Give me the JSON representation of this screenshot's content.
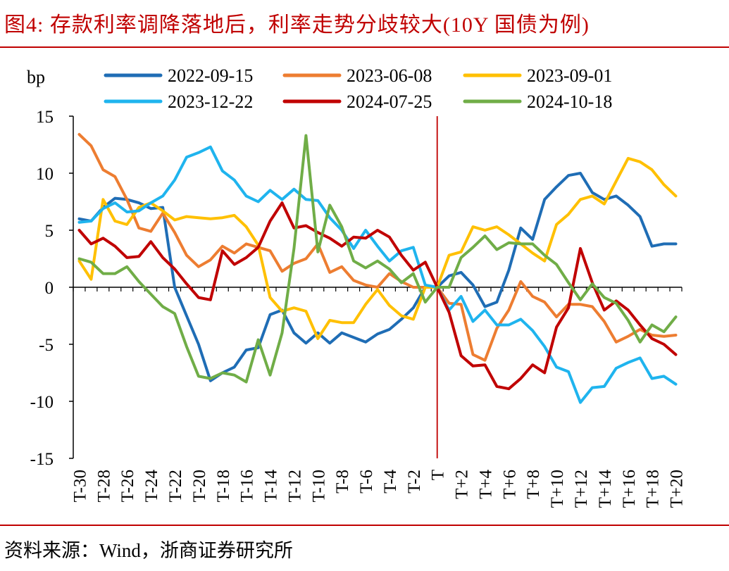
{
  "header": {
    "title": "图4:   存款利率调降落地后，利率走势分歧较大(10Y 国债为例)"
  },
  "footer": {
    "source": "资料来源：Wind，浙商证券研究所"
  },
  "chart_data": {
    "type": "line",
    "title": "",
    "ylabel": "bp",
    "ylim": [
      -15,
      15
    ],
    "yticks": [
      15,
      10,
      5,
      0,
      -5,
      -10,
      -15
    ],
    "event_marker": "T",
    "tick_labels": [
      "T-30",
      "T-28",
      "T-26",
      "T-24",
      "T-22",
      "T-20",
      "T-18",
      "T-16",
      "T-14",
      "T-12",
      "T-10",
      "T-8",
      "T-6",
      "T-4",
      "T-2",
      "T",
      "T+2",
      "T+4",
      "T+6",
      "T+8",
      "T+10",
      "T+12",
      "T+14",
      "T+16",
      "T+18",
      "T+20"
    ],
    "categories": [
      "T-30",
      "T-29",
      "T-28",
      "T-27",
      "T-26",
      "T-25",
      "T-24",
      "T-23",
      "T-22",
      "T-21",
      "T-20",
      "T-19",
      "T-18",
      "T-17",
      "T-16",
      "T-15",
      "T-14",
      "T-13",
      "T-12",
      "T-11",
      "T-10",
      "T-9",
      "T-8",
      "T-7",
      "T-6",
      "T-5",
      "T-4",
      "T-3",
      "T-2",
      "T-1",
      "T",
      "T+1",
      "T+2",
      "T+3",
      "T+4",
      "T+5",
      "T+6",
      "T+7",
      "T+8",
      "T+9",
      "T+10",
      "T+11",
      "T+12",
      "T+13",
      "T+14",
      "T+15",
      "T+16",
      "T+17",
      "T+18",
      "T+19",
      "T+20"
    ],
    "legend_position": "top",
    "series": [
      {
        "name": "2022-09-15",
        "color": "#1f6db5",
        "values": [
          6,
          5.8,
          7,
          7.8,
          7.7,
          7.4,
          6.9,
          7,
          0,
          -2.5,
          -5,
          -8.2,
          -7.5,
          -7,
          -5.5,
          -5.3,
          -2.4,
          -2,
          -4,
          -4.9,
          -4,
          -4.9,
          -4,
          -4.4,
          -4.8,
          -4.1,
          -3.7,
          -2.8,
          -1.8,
          0,
          0,
          1,
          1.3,
          0.2,
          -1.7,
          -1.3,
          1.5,
          5.2,
          4.2,
          7.7,
          8.8,
          9.8,
          10,
          8.3,
          7.7,
          8,
          7.2,
          6.2,
          3.6,
          3.8,
          3.8
        ]
      },
      {
        "name": "2023-06-08",
        "color": "#ed7d31",
        "values": [
          13.4,
          12.4,
          10.3,
          9.7,
          7.7,
          5.2,
          4.9,
          6.5,
          4.8,
          2.8,
          1.8,
          2.4,
          3.6,
          3,
          3.8,
          3.5,
          3.2,
          1.4,
          2.1,
          2.5,
          3.8,
          1.3,
          1.8,
          0.6,
          0.2,
          0,
          1.2,
          0.5,
          0,
          0,
          0,
          -1.4,
          -1.5,
          -5.9,
          -6.4,
          -3.6,
          -2,
          0.5,
          -0.8,
          -1.3,
          -2.6,
          -1.5,
          -1.5,
          -1.7,
          -3,
          -4.8,
          -4.3,
          -3.7,
          -4.2,
          -4.3,
          -4.2
        ]
      },
      {
        "name": "2023-09-01",
        "color": "#ffc000",
        "values": [
          2.3,
          0.7,
          7.7,
          5.8,
          5.5,
          7,
          7.4,
          6.7,
          5.9,
          6.2,
          6.1,
          6,
          6.1,
          6.3,
          5.3,
          3.7,
          -0.9,
          -2.1,
          -1.8,
          -2.1,
          -4.5,
          -2.9,
          -3.1,
          -3.1,
          -1.5,
          -0.2,
          -1.6,
          -2.5,
          -2.8,
          0,
          0,
          2.8,
          3.1,
          5.3,
          5,
          5.3,
          4.6,
          3.8,
          3,
          2.3,
          5.5,
          6.4,
          7.7,
          8,
          7.3,
          9.3,
          11.3,
          11,
          10.3,
          9,
          8
        ]
      },
      {
        "name": "2023-12-22",
        "color": "#1fb4ee",
        "values": [
          5.7,
          5.8,
          6.9,
          7.4,
          6.6,
          6.7,
          7.4,
          8,
          9.4,
          11.4,
          11.8,
          12.3,
          10.2,
          9.4,
          8,
          7.5,
          8.5,
          7.7,
          8.6,
          7.7,
          7.6,
          6.1,
          5,
          3.4,
          5,
          3.6,
          2.3,
          3.2,
          3.5,
          0.2,
          0,
          -2,
          -0.8,
          -3,
          -2,
          -3.3,
          -3.3,
          -2.8,
          -3.8,
          -5.2,
          -7,
          -7.4,
          -10.1,
          -8.8,
          -8.7,
          -7.1,
          -6.6,
          -6.2,
          -8,
          -7.8,
          -8.5
        ]
      },
      {
        "name": "2024-07-25",
        "color": "#c00000",
        "values": [
          5,
          3.8,
          4.3,
          3.6,
          2.6,
          2.7,
          4,
          2.6,
          1.6,
          0.3,
          -0.9,
          -1.1,
          3.2,
          2,
          2.6,
          3.5,
          5.8,
          7.4,
          5.2,
          5.4,
          4.8,
          4.3,
          3.6,
          4.4,
          4.3,
          5,
          4.4,
          2.8,
          1.5,
          2.2,
          0,
          -2.2,
          -6,
          -6.9,
          -6.8,
          -8.7,
          -8.9,
          -8,
          -6.8,
          -7.5,
          -3.5,
          -1.8,
          3.4,
          0.4,
          -2,
          -1.2,
          -2,
          -3.3,
          -4.5,
          -5,
          -5.9
        ]
      },
      {
        "name": "2024-10-18",
        "color": "#70ad47",
        "values": [
          2.5,
          2.2,
          1.2,
          1.2,
          1.8,
          0.5,
          -0.6,
          -1.7,
          -2.3,
          -5.2,
          -7.8,
          -8,
          -7.5,
          -7.7,
          -8.3,
          -4.6,
          -7.7,
          -4,
          3.4,
          13.3,
          3.1,
          7.2,
          5.3,
          2.3,
          1.7,
          2.3,
          1.6,
          0.4,
          1.2,
          -1.3,
          0,
          0,
          2.6,
          3.5,
          4.5,
          3.3,
          3.9,
          3.8,
          3.8,
          2.8,
          2,
          0.4,
          -1.1,
          0.3,
          -0.9,
          -1.4,
          -2.9,
          -4.8,
          -3.3,
          -3.9,
          -2.6
        ]
      }
    ]
  }
}
